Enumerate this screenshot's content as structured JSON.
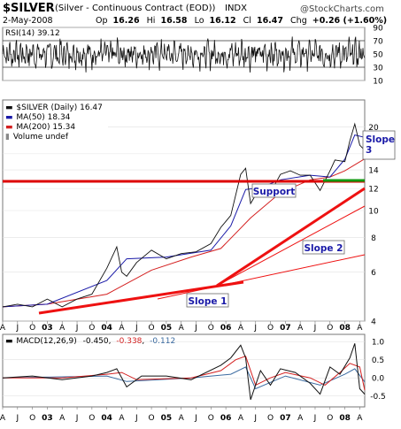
{
  "header": {
    "symbol": "$SILVER",
    "name": "(Silver - Continuous Contract (EOD))",
    "exchange": "INDX",
    "watermark": "@StockCharts.com",
    "date": "2-May-2008",
    "op_label": "Op",
    "op": "16.26",
    "hi_label": "Hi",
    "hi": "16.58",
    "lo_label": "Lo",
    "lo": "16.12",
    "cl_label": "Cl",
    "cl": "16.47",
    "chg_label": "Chg",
    "chg": "+0.26 (+1.60%)"
  },
  "colors": {
    "price": "#111111",
    "ma50": "#1a1aa8",
    "ma200": "#d42020",
    "trend": "#ee1111",
    "support_line": "#dd0000",
    "green_line": "#109a10",
    "macd_signal": "#3a6aa0",
    "annotation_text": "#1a1aa8"
  },
  "chart_data": [
    {
      "type": "line",
      "panel": "RSI",
      "legend": "RSI(14) 39.12",
      "y_ticks": [
        10,
        30,
        50,
        70,
        90
      ],
      "reference_levels": [
        30,
        70
      ],
      "ylim": [
        10,
        90
      ]
    },
    {
      "type": "line",
      "panel": "price",
      "legend": [
        {
          "label": "$SILVER (Daily) 16.47"
        },
        {
          "label": "MA(50) 18.34"
        },
        {
          "label": "MA(200) 15.34"
        },
        {
          "label": "Volume undef"
        }
      ],
      "log_scale": true,
      "y_ticks": [
        4,
        6,
        8,
        10,
        12,
        14,
        16,
        20
      ],
      "ylim": [
        4,
        25
      ],
      "x_axis": [
        "A",
        "J",
        "O",
        "03",
        "A",
        "J",
        "O",
        "04",
        "A",
        "J",
        "O",
        "05",
        "A",
        "J",
        "O",
        "06",
        "A",
        "J",
        "O",
        "07",
        "A",
        "J",
        "O",
        "08",
        "A"
      ],
      "series": [
        {
          "name": "$SILVER (Daily)",
          "x": [
            "2002-04",
            "2002-07",
            "2002-10",
            "2003-01",
            "2003-04",
            "2003-07",
            "2003-10",
            "2004-01",
            "2004-03",
            "2004-04",
            "2004-05",
            "2004-07",
            "2004-10",
            "2005-01",
            "2005-04",
            "2005-07",
            "2005-10",
            "2005-12",
            "2006-02",
            "2006-04",
            "2006-05",
            "2006-06",
            "2006-08",
            "2006-10",
            "2006-12",
            "2007-02",
            "2007-04",
            "2007-06",
            "2007-08",
            "2007-10",
            "2007-11",
            "2008-01",
            "2008-02",
            "2008-03",
            "2008-04",
            "2008-05"
          ],
          "values": [
            4.5,
            4.6,
            4.5,
            4.8,
            4.5,
            4.8,
            5.0,
            6.2,
            7.4,
            6.0,
            5.8,
            6.5,
            7.2,
            6.7,
            7.0,
            7.1,
            7.6,
            8.7,
            9.6,
            13.5,
            14.2,
            10.6,
            12.2,
            11.6,
            13.5,
            13.9,
            13.4,
            13.4,
            11.8,
            13.9,
            15.2,
            15.0,
            17.8,
            20.5,
            17.2,
            16.47
          ]
        },
        {
          "name": "MA(50)",
          "x": [
            "2002-04",
            "2003-01",
            "2004-01",
            "2004-05",
            "2005-01",
            "2005-10",
            "2006-02",
            "2006-05",
            "2006-08",
            "2006-12",
            "2007-06",
            "2007-10",
            "2008-01",
            "2008-03",
            "2008-05"
          ],
          "values": [
            4.5,
            4.6,
            5.6,
            6.7,
            6.8,
            7.2,
            8.8,
            11.9,
            12.1,
            12.9,
            13.4,
            13.2,
            15.3,
            18.7,
            18.34
          ]
        },
        {
          "name": "MA(200)",
          "x": [
            "2002-04",
            "2003-01",
            "2004-01",
            "2004-10",
            "2005-06",
            "2005-12",
            "2006-06",
            "2006-12",
            "2007-06",
            "2007-10",
            "2008-01",
            "2008-05"
          ],
          "values": [
            4.5,
            4.6,
            5.0,
            6.1,
            6.8,
            7.3,
            9.4,
            11.6,
            12.9,
            13.2,
            13.9,
            15.34
          ]
        }
      ],
      "annotations": [
        {
          "label": "Support",
          "value": 15.2
        },
        {
          "label": "Slope 1"
        },
        {
          "label": "Slope 2"
        },
        {
          "label": "Slope 3"
        }
      ]
    },
    {
      "type": "line",
      "panel": "MACD",
      "legend": {
        "name": "MACD(12,26,9)",
        "values": [
          "-0.450",
          "-0.338",
          "-0.112"
        ]
      },
      "y_ticks": [
        -0.5,
        0.0,
        0.5,
        1.0
      ],
      "y_tick_labels": [
        "-0.5",
        "0.0",
        "0.5",
        "1.0"
      ],
      "ylim": [
        -0.8,
        1.2
      ],
      "x_axis": [
        "A",
        "J",
        "O",
        "03",
        "A",
        "J",
        "O",
        "04",
        "A",
        "J",
        "O",
        "05",
        "A",
        "J",
        "O",
        "06",
        "A",
        "J",
        "O",
        "07",
        "A",
        "J",
        "O",
        "08",
        "A"
      ],
      "series": [
        {
          "name": "MACD",
          "x": [
            "2002-04",
            "2002-10",
            "2003-04",
            "2003-10",
            "2004-01",
            "2004-03",
            "2004-05",
            "2004-08",
            "2005-01",
            "2005-06",
            "2005-12",
            "2006-02",
            "2006-04",
            "2006-05",
            "2006-06",
            "2006-08",
            "2006-10",
            "2006-12",
            "2007-03",
            "2007-06",
            "2007-08",
            "2007-10",
            "2007-12",
            "2008-02",
            "2008-03",
            "2008-04",
            "2008-05"
          ],
          "values": [
            0.0,
            0.05,
            -0.05,
            0.05,
            0.15,
            0.25,
            -0.25,
            0.05,
            0.05,
            -0.05,
            0.35,
            0.55,
            0.9,
            0.55,
            -0.6,
            0.2,
            -0.2,
            0.25,
            0.15,
            -0.15,
            -0.45,
            0.3,
            0.1,
            0.55,
            0.95,
            -0.3,
            -0.45
          ]
        },
        {
          "name": "Signal",
          "x": [
            "2002-04",
            "2003-04",
            "2004-01",
            "2004-04",
            "2004-07",
            "2005-06",
            "2005-12",
            "2006-03",
            "2006-05",
            "2006-07",
            "2006-10",
            "2007-01",
            "2007-06",
            "2007-09",
            "2007-12",
            "2008-02",
            "2008-04",
            "2008-05"
          ],
          "values": [
            0.0,
            0.0,
            0.1,
            0.15,
            -0.05,
            0.0,
            0.2,
            0.5,
            0.6,
            -0.2,
            0.0,
            0.15,
            0.0,
            -0.2,
            0.15,
            0.4,
            0.3,
            -0.338
          ]
        },
        {
          "name": "Histogram",
          "x": [
            "2002-04",
            "2004-01",
            "2004-05",
            "2005-06",
            "2006-02",
            "2006-05",
            "2006-07",
            "2007-01",
            "2007-08",
            "2008-01",
            "2008-03",
            "2008-05"
          ],
          "values": [
            0.0,
            0.05,
            -0.1,
            0.0,
            0.1,
            0.3,
            -0.3,
            0.05,
            -0.2,
            0.1,
            0.25,
            -0.112
          ]
        }
      ]
    }
  ]
}
